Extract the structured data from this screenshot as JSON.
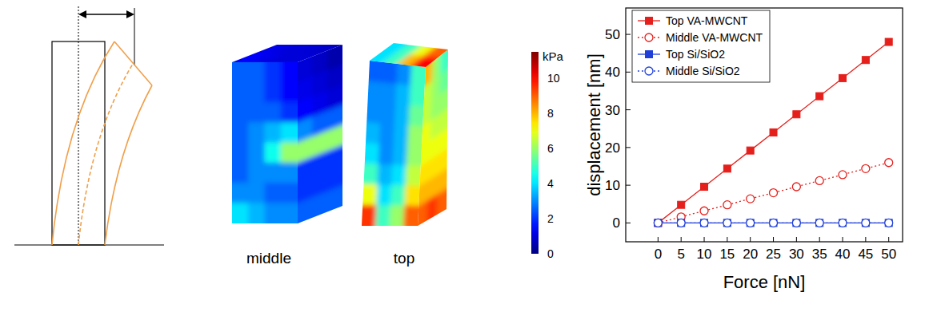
{
  "chart_data": {
    "type": "line",
    "x_label": "Force [nN]",
    "y_label": "displacement [nm]",
    "x": [
      0,
      5,
      10,
      15,
      20,
      25,
      30,
      35,
      40,
      45,
      50
    ],
    "series": [
      {
        "name": "Top VA-MWCNT",
        "color": "#e5201c",
        "marker": "square",
        "line_style": "solid",
        "values": [
          0,
          4.8,
          9.6,
          14.4,
          19.2,
          24,
          28.8,
          33.6,
          38.4,
          43.2,
          48
        ]
      },
      {
        "name": "Middle VA-MWCNT",
        "color": "#e5201c",
        "marker": "open-circle",
        "line_style": "dotted",
        "values": [
          0,
          1.6,
          3.2,
          4.8,
          6.4,
          8,
          9.6,
          11.2,
          12.8,
          14.4,
          16
        ]
      },
      {
        "name": "Top Si/SiO2",
        "color": "#1f3fd8",
        "marker": "square",
        "line_style": "solid",
        "values": [
          0,
          0,
          0,
          0,
          0,
          0,
          0,
          0,
          0,
          0,
          0
        ]
      },
      {
        "name": "Middle Si/SiO2",
        "color": "#1f3fd8",
        "marker": "open-circle",
        "line_style": "dotted",
        "values": [
          0,
          0,
          0,
          0,
          0,
          0,
          0,
          0,
          0,
          0,
          0
        ]
      }
    ],
    "xlim": [
      -7,
      53
    ],
    "xticks": [
      0,
      5,
      10,
      15,
      20,
      25,
      30,
      35,
      40,
      45,
      50
    ],
    "ylim": [
      -5,
      57
    ],
    "yticks": [
      0,
      10,
      20,
      30,
      40,
      50
    ],
    "legend": "top-left",
    "grid": false
  },
  "stress_maps": {
    "unit": "kPa",
    "colorbar_range": [
      0,
      11.5
    ],
    "colorbar_ticks": [
      0,
      2,
      4,
      6,
      8,
      10
    ],
    "panels": [
      {
        "label": "middle",
        "front": [
          [
            2.5,
            2.5,
            2,
            1.5
          ],
          [
            2.5,
            2.5,
            2,
            1.5
          ],
          [
            2.5,
            2.5,
            2.5,
            2
          ],
          [
            2.5,
            3,
            3.5,
            4
          ],
          [
            2.5,
            3,
            4.5,
            6
          ],
          [
            2.5,
            3,
            3,
            3
          ],
          [
            3,
            3,
            2.5,
            2.5
          ],
          [
            4,
            3.5,
            3,
            3
          ]
        ],
        "side": [
          [
            1,
            0.8,
            0.5
          ],
          [
            1.2,
            1,
            0.8
          ],
          [
            1.5,
            1.2,
            1
          ],
          [
            3,
            2.5,
            2.5
          ],
          [
            6,
            6,
            6
          ],
          [
            2,
            2,
            2
          ],
          [
            2,
            2,
            2
          ],
          [
            2.5,
            2.5,
            2.5
          ]
        ],
        "top_face": [
          [
            1.2,
            1,
            1,
            0.8
          ],
          [
            1.5,
            1.2,
            1,
            1
          ]
        ]
      },
      {
        "label": "top",
        "front": [
          [
            2.5,
            2.5,
            3,
            5
          ],
          [
            3,
            3,
            3.5,
            5
          ],
          [
            3,
            3,
            3.5,
            5.5
          ],
          [
            3.5,
            3,
            3.5,
            6
          ],
          [
            4,
            3,
            3.5,
            6
          ],
          [
            5,
            3.5,
            4,
            6.5
          ],
          [
            7,
            4,
            5,
            7.5
          ],
          [
            9.5,
            5,
            6,
            9
          ]
        ],
        "side": [
          [
            8,
            6,
            5
          ],
          [
            6.5,
            6,
            5.5
          ],
          [
            6.5,
            6,
            6
          ],
          [
            7,
            6.5,
            6.5
          ],
          [
            7,
            7,
            7
          ],
          [
            7.5,
            7.5,
            7.5
          ],
          [
            8,
            8,
            8
          ],
          [
            9,
            9.5,
            9
          ]
        ],
        "top_face": [
          [
            4,
            5,
            7,
            9
          ],
          [
            4,
            5,
            8,
            10
          ]
        ]
      }
    ]
  }
}
